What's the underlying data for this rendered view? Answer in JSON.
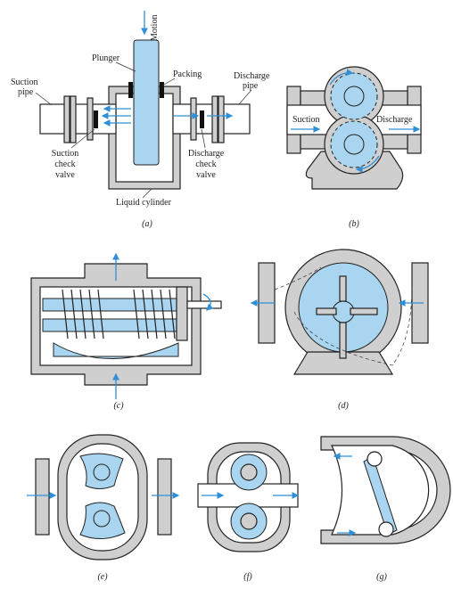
{
  "panel_a": {
    "motion": "Motion",
    "plunger": "Plunger",
    "packing": "Packing",
    "suction_pipe": [
      "Suction",
      "pipe"
    ],
    "discharge_pipe": [
      "Discharge",
      "pipe"
    ],
    "suction_check_valve": [
      "Suction",
      "check",
      "valve"
    ],
    "discharge_check_valve": [
      "Discharge",
      "check",
      "valve"
    ],
    "liquid_cylinder": "Liquid cylinder",
    "caption": "(a)"
  },
  "panel_b": {
    "suction": "Suction",
    "discharge": "Discharge",
    "caption": "(b)"
  },
  "panel_c": {
    "caption": "(c)"
  },
  "panel_d": {
    "caption": "(d)"
  },
  "panel_e": {
    "caption": "(e)"
  },
  "panel_f": {
    "caption": "(f)"
  },
  "panel_g": {
    "caption": "(g)"
  }
}
